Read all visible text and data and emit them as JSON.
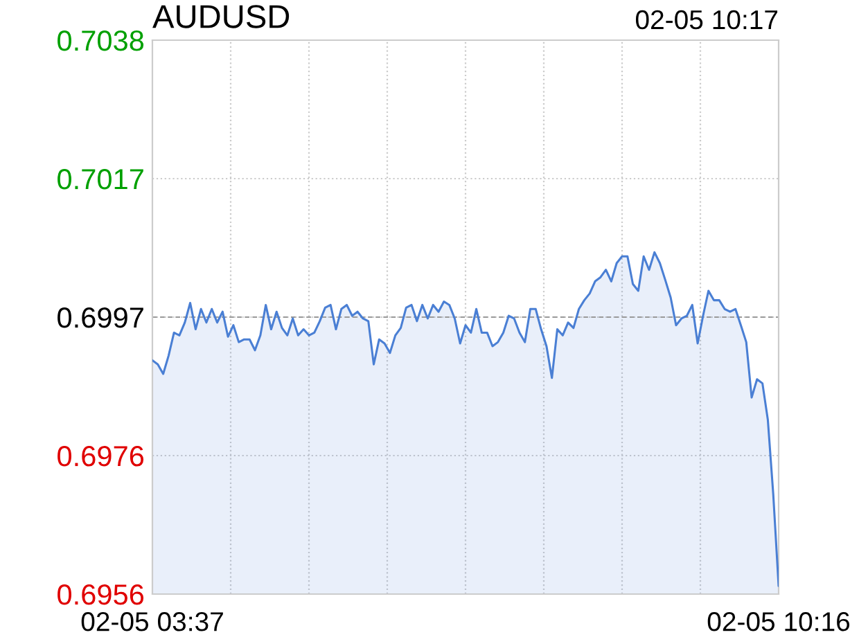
{
  "chart_data": {
    "type": "area",
    "title": "AUDUSD",
    "annotations": [
      "02-05 10:17"
    ],
    "categories": [
      "02-05 03:37",
      null,
      null,
      null,
      null,
      null,
      null,
      null,
      null,
      null,
      null,
      null,
      null,
      null,
      null,
      null,
      null,
      null,
      null,
      null,
      null,
      null,
      null,
      null,
      null,
      null,
      null,
      null,
      null,
      null,
      null,
      null,
      null,
      null,
      null,
      null,
      null,
      null,
      null,
      null,
      null,
      null,
      null,
      null,
      null,
      null,
      null,
      null,
      null,
      null,
      null,
      null,
      null,
      null,
      null,
      null,
      null,
      null,
      null,
      null,
      null,
      null,
      null,
      null,
      null,
      null,
      null,
      null,
      null,
      null,
      null,
      null,
      null,
      null,
      null,
      null,
      null,
      null,
      null,
      null,
      null,
      null,
      null,
      null,
      null,
      null,
      null,
      null,
      null,
      null,
      null,
      null,
      null,
      null,
      null,
      null,
      null,
      null,
      null,
      null,
      null,
      null,
      null,
      null,
      null,
      null,
      null,
      null,
      null,
      null,
      null,
      null,
      null,
      null,
      null,
      null,
      "02-05 10:16"
    ],
    "series": [
      {
        "color": "#4a7fd4",
        "values": [
          0.69906,
          0.699,
          0.69886,
          0.69913,
          0.69947,
          0.69943,
          0.69962,
          0.69991,
          0.69952,
          0.69982,
          0.69962,
          0.69982,
          0.69962,
          0.69978,
          0.69941,
          0.69958,
          0.69933,
          0.69937,
          0.69937,
          0.69921,
          0.69943,
          0.69988,
          0.69952,
          0.69978,
          0.69954,
          0.69943,
          0.69968,
          0.69943,
          0.69952,
          0.69943,
          0.69947,
          0.69964,
          0.69984,
          0.69988,
          0.69952,
          0.69982,
          0.69988,
          0.69972,
          0.69978,
          0.69968,
          0.69964,
          0.699,
          0.69937,
          0.69931,
          0.69917,
          0.69943,
          0.69954,
          0.69984,
          0.69988,
          0.69964,
          0.69988,
          0.69968,
          0.69988,
          0.69978,
          0.69993,
          0.69988,
          0.69968,
          0.69931,
          0.69958,
          0.69947,
          0.69982,
          0.69947,
          0.69947,
          0.69927,
          0.69933,
          0.69947,
          0.69972,
          0.69968,
          0.69947,
          0.69933,
          0.69982,
          0.69982,
          0.69952,
          0.69927,
          0.6988,
          0.69952,
          0.69943,
          0.69962,
          0.69954,
          0.69982,
          0.69995,
          0.70005,
          0.70023,
          0.70029,
          0.7004,
          0.70023,
          0.7005,
          0.7006,
          0.7006,
          0.70019,
          0.70009,
          0.7006,
          0.7004,
          0.70066,
          0.7005,
          0.70025,
          0.69999,
          0.69958,
          0.69968,
          0.69972,
          0.69988,
          0.69931,
          0.69972,
          0.70009,
          0.69995,
          0.69995,
          0.69982,
          0.69978,
          0.69982,
          0.69958,
          0.69933,
          0.69851,
          0.69878,
          0.69872,
          0.69818,
          0.69708,
          0.69572
        ]
      }
    ],
    "ylim": [
      0.6956,
      0.7038
    ],
    "yticks": [
      0.6956,
      {
        "value": 0.69765,
        "label": "0.6976"
      },
      0.6997,
      {
        "value": 0.70175,
        "label": "0.7017"
      },
      0.7038
    ],
    "grid": true,
    "ref_lines": [
      {
        "axis": "y",
        "value": 0.6997,
        "color": "#999999",
        "line_style": "dashed"
      }
    ]
  }
}
